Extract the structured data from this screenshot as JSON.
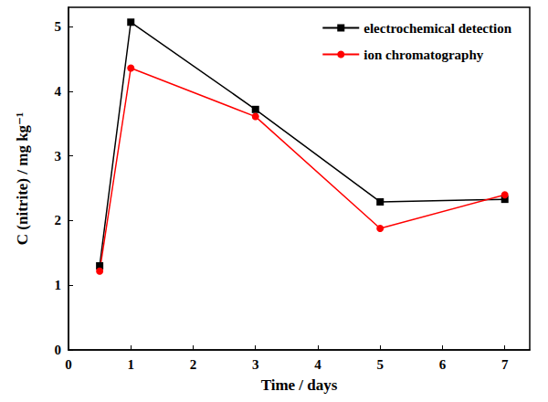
{
  "chart_data": {
    "type": "line",
    "x_label": "Time / days",
    "y_label": "C (nitrite) / mg kg⁻¹",
    "xlim": [
      0,
      7.4
    ],
    "xticks": [
      0,
      1,
      2,
      3,
      4,
      5,
      6,
      7
    ],
    "ylim": [
      0,
      5.3
    ],
    "yticks": [
      0,
      1,
      2,
      3,
      4,
      5
    ],
    "grid": false,
    "legend": "upper right",
    "series": [
      {
        "name": "electrochemical detection",
        "color": "#000000",
        "marker": "square",
        "line_style": "solid",
        "x": [
          0.5,
          1,
          3,
          5,
          7
        ],
        "values": [
          1.3,
          5.07,
          3.72,
          2.29,
          2.33
        ]
      },
      {
        "name": "ion chromatography",
        "color": "#ff0000",
        "marker": "circle",
        "line_style": "solid",
        "x": [
          0.5,
          1,
          3,
          5,
          7
        ],
        "values": [
          1.22,
          4.36,
          3.61,
          1.88,
          2.4
        ]
      }
    ]
  }
}
